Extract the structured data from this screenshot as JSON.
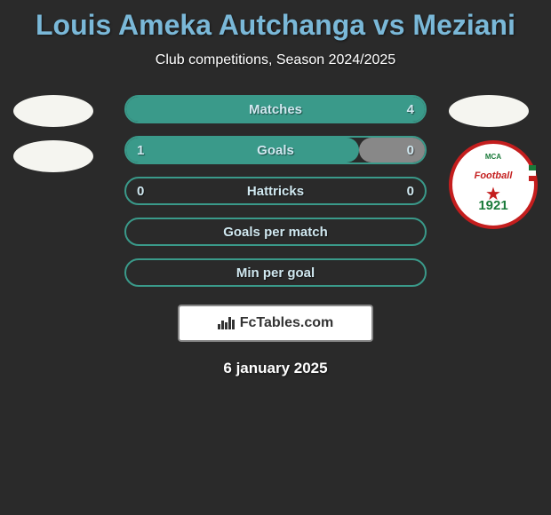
{
  "title": "Louis Ameka Autchanga vs Meziani",
  "subtitle": "Club competitions, Season 2024/2025",
  "date": "6 january 2025",
  "footer_brand": "FcTables.com",
  "badge": {
    "top_text": "MCA",
    "center_text": "Football",
    "year": "1921"
  },
  "colors": {
    "background": "#2a2a2a",
    "title_color": "#7ab8d8",
    "text_color": "#ffffff",
    "bar_border": "#3a9a8a",
    "bar_fill_green": "#3a9a8a",
    "bar_fill_grey": "#888888",
    "bar_text": "#d0e8f0"
  },
  "bars": [
    {
      "label": "Matches",
      "left_value": "",
      "right_value": "4",
      "left_fill_pct": 0,
      "right_fill_pct": 100,
      "left_fill_color": "#888888",
      "right_fill_color": "#3a9a8a",
      "border_color": "#3a9a8a"
    },
    {
      "label": "Goals",
      "left_value": "1",
      "right_value": "0",
      "left_fill_pct": 78,
      "right_fill_pct": 22,
      "left_fill_color": "#3a9a8a",
      "right_fill_color": "#888888",
      "border_color": "#3a9a8a"
    },
    {
      "label": "Hattricks",
      "left_value": "0",
      "right_value": "0",
      "left_fill_pct": 0,
      "right_fill_pct": 0,
      "left_fill_color": "#3a9a8a",
      "right_fill_color": "#888888",
      "border_color": "#3a9a8a"
    },
    {
      "label": "Goals per match",
      "left_value": "",
      "right_value": "",
      "left_fill_pct": 0,
      "right_fill_pct": 0,
      "left_fill_color": "#3a9a8a",
      "right_fill_color": "#888888",
      "border_color": "#3a9a8a"
    },
    {
      "label": "Min per goal",
      "left_value": "",
      "right_value": "",
      "left_fill_pct": 0,
      "right_fill_pct": 0,
      "left_fill_color": "#3a9a8a",
      "right_fill_color": "#888888",
      "border_color": "#3a9a8a"
    }
  ]
}
